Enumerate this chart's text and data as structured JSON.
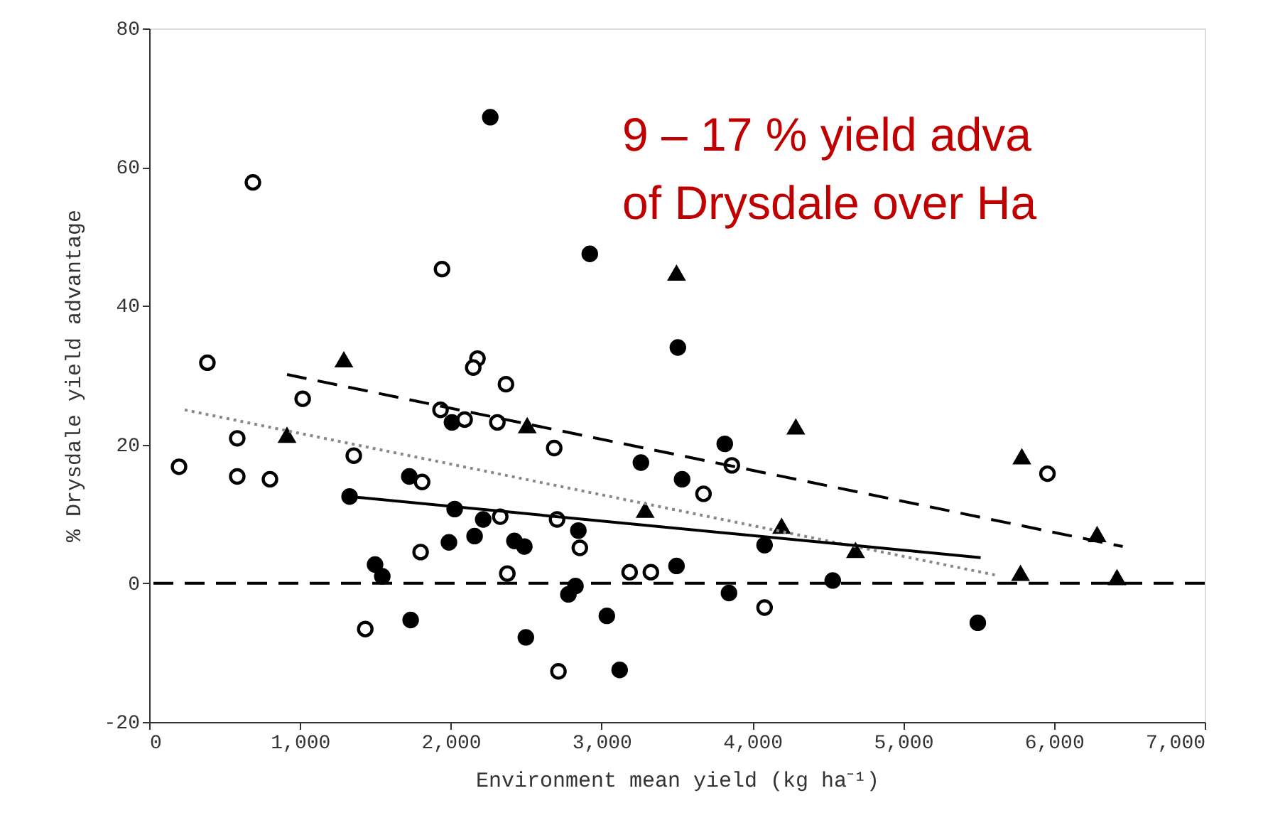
{
  "chart_data": {
    "type": "scatter",
    "xlabel": "Environment mean yield (kg ha⁻¹)",
    "ylabel": "% Drysdale yield advantage",
    "xlim": [
      0,
      7000
    ],
    "ylim": [
      -20,
      80
    ],
    "xticks": [
      0,
      {
        "value": 1000,
        "label": "1,000"
      },
      {
        "value": 2000,
        "label": "2,000"
      },
      {
        "value": 3000,
        "label": "3,000"
      },
      {
        "value": 4000,
        "label": "4,000"
      },
      {
        "value": 5000,
        "label": "5,000"
      },
      {
        "value": 6000,
        "label": "6,000"
      },
      {
        "value": 7000,
        "label": "7,000"
      }
    ],
    "yticks": [
      -20,
      0,
      20,
      40,
      60,
      80
    ],
    "grid": false,
    "annotations": [
      "9 – 17 % yield adva",
      "of Drysdale over Ha"
    ],
    "ref_lines": [
      {
        "axis": "y",
        "value": 0,
        "color": "#000000",
        "line_style": "dashed"
      }
    ],
    "series": [
      {
        "marker": "circle",
        "color": "#000000",
        "x": [
          2262,
          2922,
          3506,
          3817,
          3261,
          1329,
          1725,
          2026,
          1988,
          2158,
          2215,
          2422,
          2488,
          2846,
          1498,
          1546,
          1734,
          2498,
          2780,
          2827,
          3035,
          3120,
          3497,
          3845,
          4081,
          4533,
          5495,
          3534,
          2008
        ],
        "values": [
          67.2,
          47.5,
          34.0,
          20.1,
          17.4,
          12.5,
          15.4,
          10.7,
          5.9,
          6.8,
          9.2,
          6.1,
          5.3,
          7.6,
          2.7,
          1.0,
          -5.3,
          -7.8,
          -1.6,
          -0.4,
          -4.7,
          -12.5,
          2.5,
          -1.4,
          5.5,
          0.4,
          -5.7,
          15.0,
          23.2
        ]
      },
      {
        "marker": "circle",
        "color": "#ffffff",
        "x": [
          688,
          1942,
          2177,
          2149,
          2366,
          386,
          1018,
          584,
          198,
          584,
          801,
          1357,
          1932,
          2092,
          2309,
          2686,
          3864,
          3676,
          2705,
          2328,
          1810,
          1800,
          2375,
          2856,
          3186,
          3327,
          4081,
          2714,
          1433,
          5957
        ],
        "values": [
          57.8,
          45.3,
          32.4,
          31.1,
          28.7,
          31.8,
          26.6,
          20.9,
          16.8,
          15.4,
          15.0,
          18.4,
          25.0,
          23.6,
          23.2,
          19.5,
          17.0,
          12.9,
          9.2,
          9.6,
          14.6,
          4.5,
          1.4,
          5.1,
          1.6,
          1.6,
          -3.5,
          -12.7,
          -6.6,
          15.8
        ]
      },
      {
        "marker": "triangle",
        "color": "#000000",
        "x": [
          1291,
          914,
          2507,
          3497,
          4288,
          3289,
          4194,
          4684,
          5787,
          6286,
          5778,
          6418
        ],
        "values": [
          32.2,
          21.3,
          22.7,
          44.7,
          22.5,
          10.5,
          8.2,
          4.7,
          18.2,
          7.0,
          1.4,
          0.8
        ]
      },
      {
        "type": "line",
        "line_style": "dashed",
        "color": "#000000",
        "x": [
          914,
          6456
        ],
        "values": [
          30.1,
          5.3
        ]
      },
      {
        "type": "line",
        "line_style": "dotted",
        "color": "#888888",
        "x": [
          236,
          5608
        ],
        "values": [
          25.0,
          1.2
        ]
      },
      {
        "type": "line",
        "line_style": "solid",
        "color": "#000000",
        "x": [
          1329,
          5514
        ],
        "values": [
          12.5,
          3.7
        ]
      }
    ]
  }
}
